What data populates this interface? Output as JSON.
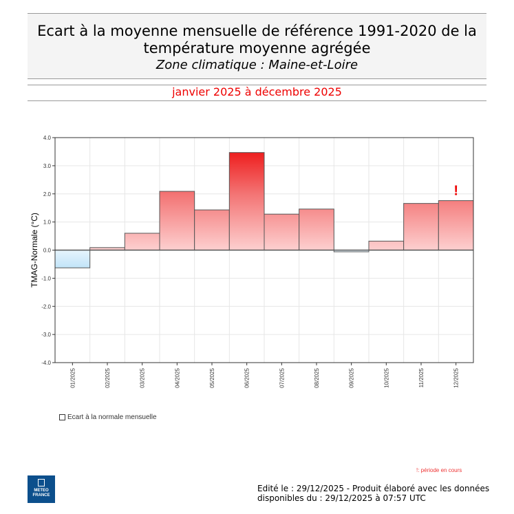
{
  "header": {
    "title": "Ecart à la moyenne mensuelle de référence 1991-2020 de la température moyenne  agrégée",
    "subtitle": "Zone climatique : Maine-et-Loire"
  },
  "period": "janvier 2025 à décembre 2025",
  "chart_data": {
    "type": "bar",
    "ylabel": "TMAG-Normale (°C)",
    "ylim": [
      -4.0,
      4.0
    ],
    "yticks": [
      "4.0",
      "3.0",
      "2.0",
      "1.0",
      "0.0",
      "-1.0",
      "-2.0",
      "-3.0",
      "-4.0"
    ],
    "grid": true,
    "categories": [
      "01/2025",
      "02/2025",
      "03/2025",
      "04/2025",
      "05/2025",
      "06/2025",
      "07/2025",
      "08/2025",
      "09/2025",
      "10/2025",
      "11/2025",
      "12/2025"
    ],
    "values": [
      -0.63,
      0.09,
      0.6,
      2.09,
      1.43,
      3.47,
      1.28,
      1.46,
      -0.06,
      0.32,
      1.66,
      1.76
    ],
    "in_progress_marker": {
      "category": "12/2025",
      "label": "!"
    },
    "legend": "Ecart à la normale mensuelle",
    "colors": {
      "positive": "#ee1c1c",
      "positive_light": "#fdd0d0",
      "negative": "#bfe3f7"
    }
  },
  "note": "!: période en cours",
  "logo": "METEO FRANCE",
  "footer": {
    "line1": "Edité le : 29/12/2025 - Produit élaboré avec les données",
    "line2": "disponibles du : 29/12/2025 à 07:57 UTC"
  }
}
